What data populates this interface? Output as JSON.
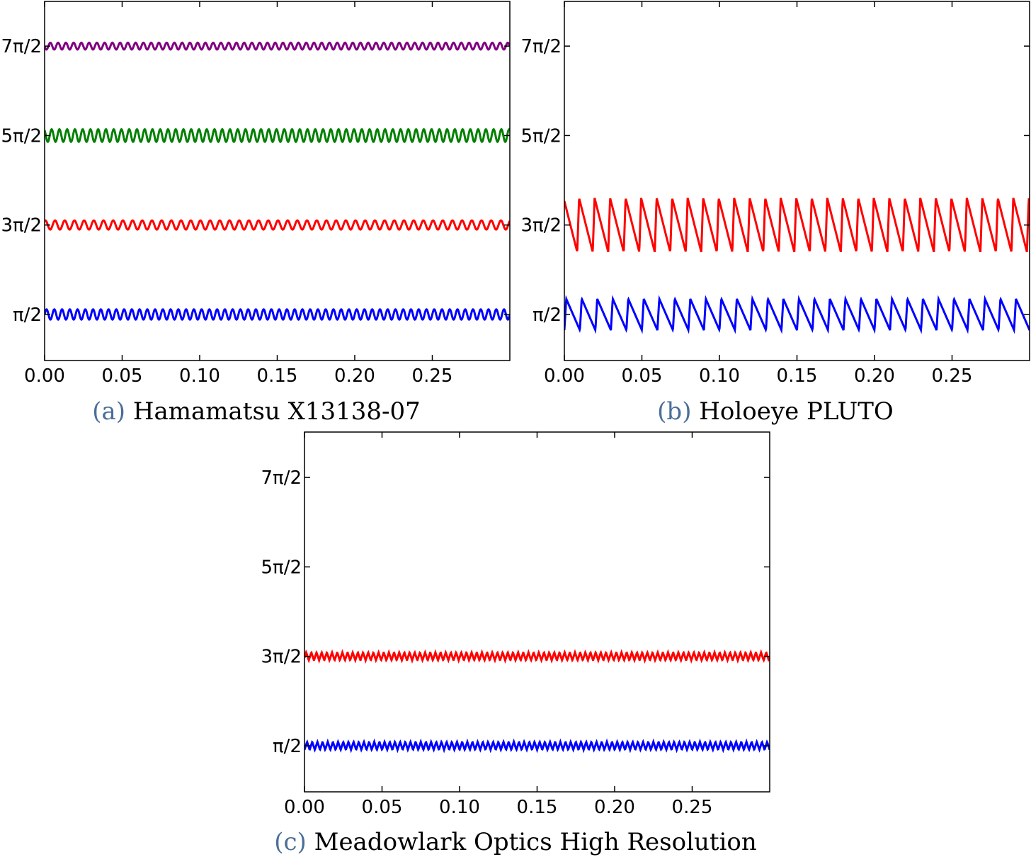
{
  "chart_data": [
    {
      "type": "line",
      "caption_tag": "(a)",
      "caption": "Hamamatsu X13138-07",
      "xlim": [
        0,
        0.3
      ],
      "ylim": [
        0.0,
        8.64
      ],
      "x_ticks": [
        "0.00",
        "0.05",
        "0.10",
        "0.15",
        "0.20",
        "0.25"
      ],
      "x_tick_values": [
        0,
        0.05,
        0.1,
        0.15,
        0.2,
        0.25
      ],
      "y_ticks": [
        "π/2",
        "3π/2",
        "5π/2",
        "7π/2"
      ],
      "y_tick_values": [
        1.5708,
        4.7124,
        7.854,
        10.9956
      ],
      "series": [
        {
          "color": "#0000ff",
          "shape": "sine",
          "center": 1.5708,
          "amplitude": 0.18,
          "frequency": 200
        },
        {
          "color": "#ff0000",
          "shape": "sine",
          "center": 4.7124,
          "amplitude": 0.16,
          "frequency": 160
        },
        {
          "color": "#008000",
          "shape": "sine",
          "center": 7.854,
          "amplitude": 0.22,
          "frequency": 200
        },
        {
          "color": "#800080",
          "shape": "sine",
          "center": 10.9956,
          "amplitude": 0.12,
          "frequency": 200
        }
      ]
    },
    {
      "type": "line",
      "caption_tag": "(b)",
      "caption": "Holoeye PLUTO",
      "xlim": [
        0,
        0.3
      ],
      "ylim": [
        0.0,
        8.64
      ],
      "x_ticks": [
        "0.00",
        "0.05",
        "0.10",
        "0.15",
        "0.20",
        "0.25"
      ],
      "x_tick_values": [
        0,
        0.05,
        0.1,
        0.15,
        0.2,
        0.25
      ],
      "y_ticks": [
        "π/2",
        "3π/2",
        "5π/2",
        "7π/2"
      ],
      "y_tick_values": [
        1.5708,
        4.7124,
        7.854,
        10.9956
      ],
      "series": [
        {
          "color": "#0000ff",
          "shape": "sawtooth",
          "center": 1.5708,
          "amplitude": 0.55,
          "frequency": 100
        },
        {
          "color": "#ff0000",
          "shape": "sawtooth",
          "center": 4.7124,
          "amplitude": 0.95,
          "frequency": 100
        }
      ]
    },
    {
      "type": "line",
      "caption_tag": "(c)",
      "caption": "Meadowlark Optics High Resolution",
      "xlim": [
        0,
        0.3
      ],
      "ylim": [
        0.0,
        8.64
      ],
      "x_ticks": [
        "0.00",
        "0.05",
        "0.10",
        "0.15",
        "0.20",
        "0.25"
      ],
      "x_tick_values": [
        0,
        0.05,
        0.1,
        0.15,
        0.2,
        0.25
      ],
      "y_ticks": [
        "π/2",
        "3π/2",
        "5π/2",
        "7π/2"
      ],
      "y_tick_values": [
        1.5708,
        4.7124,
        7.854,
        10.9956
      ],
      "series": [
        {
          "color": "#0000ff",
          "shape": "triangle",
          "center": 1.5708,
          "amplitude": 0.14,
          "frequency": 300
        },
        {
          "color": "#ff0000",
          "shape": "triangle",
          "center": 4.7124,
          "amplitude": 0.14,
          "frequency": 300
        }
      ]
    }
  ]
}
